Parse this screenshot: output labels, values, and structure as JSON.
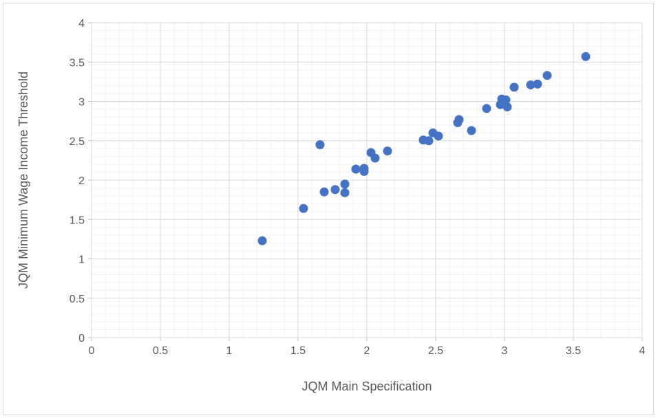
{
  "chart_data": {
    "type": "scatter",
    "title": "",
    "xlabel": "JQM Main Specification",
    "ylabel": "JQM Minimum Wage Income Threshold",
    "xlim": [
      0,
      4
    ],
    "ylim": [
      0,
      4
    ],
    "x_ticks": [
      "0",
      "0.5",
      "1",
      "1.5",
      "2",
      "2.5",
      "3",
      "3.5",
      "4"
    ],
    "y_ticks": [
      "0",
      "0.5",
      "1",
      "1.5",
      "2",
      "2.5",
      "3",
      "3.5",
      "4"
    ],
    "grid": "major and minor",
    "marker_color": "#4472C4",
    "points": [
      [
        1.24,
        1.23
      ],
      [
        1.54,
        1.64
      ],
      [
        1.66,
        2.45
      ],
      [
        1.69,
        1.85
      ],
      [
        1.77,
        1.88
      ],
      [
        1.84,
        1.95
      ],
      [
        1.84,
        1.84
      ],
      [
        1.92,
        2.14
      ],
      [
        1.98,
        2.15
      ],
      [
        1.98,
        2.11
      ],
      [
        2.03,
        2.35
      ],
      [
        2.06,
        2.28
      ],
      [
        2.15,
        2.37
      ],
      [
        2.41,
        2.51
      ],
      [
        2.45,
        2.5
      ],
      [
        2.48,
        2.6
      ],
      [
        2.52,
        2.56
      ],
      [
        2.66,
        2.73
      ],
      [
        2.67,
        2.77
      ],
      [
        2.76,
        2.63
      ],
      [
        2.87,
        2.91
      ],
      [
        2.97,
        2.96
      ],
      [
        2.98,
        3.03
      ],
      [
        3.01,
        3.02
      ],
      [
        3.02,
        2.93
      ],
      [
        3.07,
        3.18
      ],
      [
        3.19,
        3.21
      ],
      [
        3.24,
        3.22
      ],
      [
        3.31,
        3.33
      ],
      [
        3.59,
        3.57
      ]
    ]
  }
}
